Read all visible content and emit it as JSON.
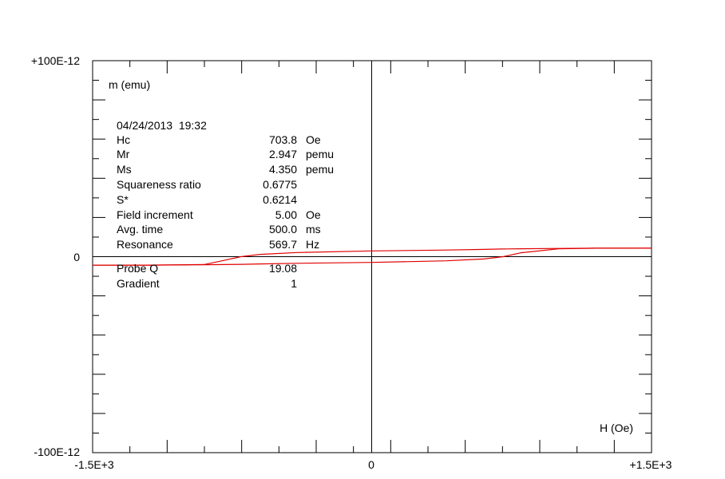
{
  "chart_data": {
    "type": "line",
    "ylabel": "m (emu)",
    "xlabel": "H (Oe)",
    "xlim": [
      -1500,
      1500
    ],
    "ylim": [
      -1e-10,
      1e-10
    ],
    "x_tick_labels": [
      "-1.5E+3",
      "0",
      "+1.5E+3"
    ],
    "y_tick_labels": [
      "+100E-12",
      "0",
      "-100E-12"
    ],
    "grid": false,
    "series": [
      {
        "color": "#e00000",
        "x": [
          -1500,
          -1200,
          -900,
          -800,
          -703.8,
          -600,
          -400,
          0,
          400,
          600,
          700,
          800,
          1000,
          1200,
          1500
        ],
        "y": [
          -4.35e-12,
          -4.3e-12,
          -4e-12,
          -2e-12,
          0,
          1.2e-12,
          2.1e-12,
          2.947e-12,
          3.4e-12,
          3.7e-12,
          3.9e-12,
          4.05e-12,
          4.2e-12,
          4.3e-12,
          4.35e-12
        ]
      },
      {
        "color": "#e00000",
        "x": [
          1500,
          1200,
          1000,
          800,
          703.8,
          600,
          400,
          0,
          -400,
          -600,
          -700,
          -800,
          -1000,
          -1200,
          -1500
        ],
        "y": [
          4.35e-12,
          4.3e-12,
          4e-12,
          2e-12,
          0,
          -1.2e-12,
          -2.1e-12,
          -2.947e-12,
          -3.4e-12,
          -3.7e-12,
          -3.9e-12,
          -4.05e-12,
          -4.2e-12,
          -4.3e-12,
          -4.35e-12
        ]
      }
    ],
    "info": {
      "timestamp": "04/24/2013  19:32",
      "rows": [
        {
          "label": "Hc",
          "value": "703.8",
          "unit": "Oe"
        },
        {
          "label": "Mr",
          "value": "2.947",
          "unit": "pemu"
        },
        {
          "label": "Ms",
          "value": "4.350",
          "unit": "pemu"
        },
        {
          "label": "Squareness ratio",
          "value": "0.6775",
          "unit": ""
        },
        {
          "label": "S*",
          "value": "0.6214",
          "unit": ""
        },
        {
          "label": "Field increment",
          "value": "5.00",
          "unit": "Oe"
        },
        {
          "label": "Avg. time",
          "value": "500.0",
          "unit": "ms"
        },
        {
          "label": "Resonance",
          "value": "569.7",
          "unit": "Hz"
        },
        {
          "label": "Probe Q",
          "value": "19.08",
          "unit": ""
        },
        {
          "label": "Gradient",
          "value": "1",
          "unit": ""
        }
      ]
    }
  }
}
